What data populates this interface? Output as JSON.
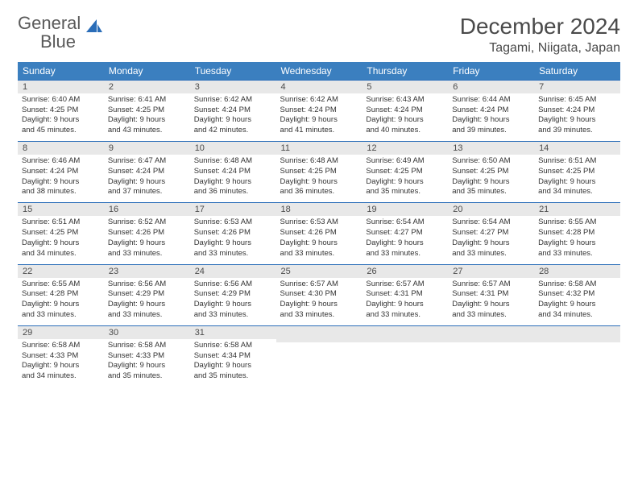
{
  "logo": {
    "word1": "General",
    "word2": "Blue"
  },
  "title": "December 2024",
  "location": "Tagami, Niigata, Japan",
  "colors": {
    "header_bg": "#3b7fbf",
    "header_text": "#ffffff",
    "daynum_bg": "#e8e8e8",
    "border": "#2a6db8",
    "logo_gray": "#5a5a5a",
    "logo_blue": "#2a6db8"
  },
  "day_headers": [
    "Sunday",
    "Monday",
    "Tuesday",
    "Wednesday",
    "Thursday",
    "Friday",
    "Saturday"
  ],
  "weeks": [
    [
      {
        "n": "1",
        "sr": "Sunrise: 6:40 AM",
        "ss": "Sunset: 4:25 PM",
        "d1": "Daylight: 9 hours",
        "d2": "and 45 minutes."
      },
      {
        "n": "2",
        "sr": "Sunrise: 6:41 AM",
        "ss": "Sunset: 4:25 PM",
        "d1": "Daylight: 9 hours",
        "d2": "and 43 minutes."
      },
      {
        "n": "3",
        "sr": "Sunrise: 6:42 AM",
        "ss": "Sunset: 4:24 PM",
        "d1": "Daylight: 9 hours",
        "d2": "and 42 minutes."
      },
      {
        "n": "4",
        "sr": "Sunrise: 6:42 AM",
        "ss": "Sunset: 4:24 PM",
        "d1": "Daylight: 9 hours",
        "d2": "and 41 minutes."
      },
      {
        "n": "5",
        "sr": "Sunrise: 6:43 AM",
        "ss": "Sunset: 4:24 PM",
        "d1": "Daylight: 9 hours",
        "d2": "and 40 minutes."
      },
      {
        "n": "6",
        "sr": "Sunrise: 6:44 AM",
        "ss": "Sunset: 4:24 PM",
        "d1": "Daylight: 9 hours",
        "d2": "and 39 minutes."
      },
      {
        "n": "7",
        "sr": "Sunrise: 6:45 AM",
        "ss": "Sunset: 4:24 PM",
        "d1": "Daylight: 9 hours",
        "d2": "and 39 minutes."
      }
    ],
    [
      {
        "n": "8",
        "sr": "Sunrise: 6:46 AM",
        "ss": "Sunset: 4:24 PM",
        "d1": "Daylight: 9 hours",
        "d2": "and 38 minutes."
      },
      {
        "n": "9",
        "sr": "Sunrise: 6:47 AM",
        "ss": "Sunset: 4:24 PM",
        "d1": "Daylight: 9 hours",
        "d2": "and 37 minutes."
      },
      {
        "n": "10",
        "sr": "Sunrise: 6:48 AM",
        "ss": "Sunset: 4:24 PM",
        "d1": "Daylight: 9 hours",
        "d2": "and 36 minutes."
      },
      {
        "n": "11",
        "sr": "Sunrise: 6:48 AM",
        "ss": "Sunset: 4:25 PM",
        "d1": "Daylight: 9 hours",
        "d2": "and 36 minutes."
      },
      {
        "n": "12",
        "sr": "Sunrise: 6:49 AM",
        "ss": "Sunset: 4:25 PM",
        "d1": "Daylight: 9 hours",
        "d2": "and 35 minutes."
      },
      {
        "n": "13",
        "sr": "Sunrise: 6:50 AM",
        "ss": "Sunset: 4:25 PM",
        "d1": "Daylight: 9 hours",
        "d2": "and 35 minutes."
      },
      {
        "n": "14",
        "sr": "Sunrise: 6:51 AM",
        "ss": "Sunset: 4:25 PM",
        "d1": "Daylight: 9 hours",
        "d2": "and 34 minutes."
      }
    ],
    [
      {
        "n": "15",
        "sr": "Sunrise: 6:51 AM",
        "ss": "Sunset: 4:25 PM",
        "d1": "Daylight: 9 hours",
        "d2": "and 34 minutes."
      },
      {
        "n": "16",
        "sr": "Sunrise: 6:52 AM",
        "ss": "Sunset: 4:26 PM",
        "d1": "Daylight: 9 hours",
        "d2": "and 33 minutes."
      },
      {
        "n": "17",
        "sr": "Sunrise: 6:53 AM",
        "ss": "Sunset: 4:26 PM",
        "d1": "Daylight: 9 hours",
        "d2": "and 33 minutes."
      },
      {
        "n": "18",
        "sr": "Sunrise: 6:53 AM",
        "ss": "Sunset: 4:26 PM",
        "d1": "Daylight: 9 hours",
        "d2": "and 33 minutes."
      },
      {
        "n": "19",
        "sr": "Sunrise: 6:54 AM",
        "ss": "Sunset: 4:27 PM",
        "d1": "Daylight: 9 hours",
        "d2": "and 33 minutes."
      },
      {
        "n": "20",
        "sr": "Sunrise: 6:54 AM",
        "ss": "Sunset: 4:27 PM",
        "d1": "Daylight: 9 hours",
        "d2": "and 33 minutes."
      },
      {
        "n": "21",
        "sr": "Sunrise: 6:55 AM",
        "ss": "Sunset: 4:28 PM",
        "d1": "Daylight: 9 hours",
        "d2": "and 33 minutes."
      }
    ],
    [
      {
        "n": "22",
        "sr": "Sunrise: 6:55 AM",
        "ss": "Sunset: 4:28 PM",
        "d1": "Daylight: 9 hours",
        "d2": "and 33 minutes."
      },
      {
        "n": "23",
        "sr": "Sunrise: 6:56 AM",
        "ss": "Sunset: 4:29 PM",
        "d1": "Daylight: 9 hours",
        "d2": "and 33 minutes."
      },
      {
        "n": "24",
        "sr": "Sunrise: 6:56 AM",
        "ss": "Sunset: 4:29 PM",
        "d1": "Daylight: 9 hours",
        "d2": "and 33 minutes."
      },
      {
        "n": "25",
        "sr": "Sunrise: 6:57 AM",
        "ss": "Sunset: 4:30 PM",
        "d1": "Daylight: 9 hours",
        "d2": "and 33 minutes."
      },
      {
        "n": "26",
        "sr": "Sunrise: 6:57 AM",
        "ss": "Sunset: 4:31 PM",
        "d1": "Daylight: 9 hours",
        "d2": "and 33 minutes."
      },
      {
        "n": "27",
        "sr": "Sunrise: 6:57 AM",
        "ss": "Sunset: 4:31 PM",
        "d1": "Daylight: 9 hours",
        "d2": "and 33 minutes."
      },
      {
        "n": "28",
        "sr": "Sunrise: 6:58 AM",
        "ss": "Sunset: 4:32 PM",
        "d1": "Daylight: 9 hours",
        "d2": "and 34 minutes."
      }
    ],
    [
      {
        "n": "29",
        "sr": "Sunrise: 6:58 AM",
        "ss": "Sunset: 4:33 PM",
        "d1": "Daylight: 9 hours",
        "d2": "and 34 minutes."
      },
      {
        "n": "30",
        "sr": "Sunrise: 6:58 AM",
        "ss": "Sunset: 4:33 PM",
        "d1": "Daylight: 9 hours",
        "d2": "and 35 minutes."
      },
      {
        "n": "31",
        "sr": "Sunrise: 6:58 AM",
        "ss": "Sunset: 4:34 PM",
        "d1": "Daylight: 9 hours",
        "d2": "and 35 minutes."
      },
      null,
      null,
      null,
      null
    ]
  ]
}
